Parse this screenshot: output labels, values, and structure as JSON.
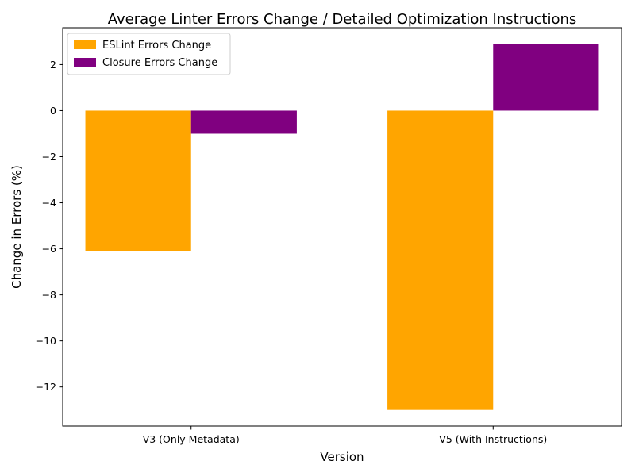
{
  "chart_data": {
    "type": "bar",
    "title": "Average Linter Errors Change / Detailed Optimization Instructions",
    "xlabel": "Version",
    "ylabel": "Change in Errors (%)",
    "categories": [
      "V3 (Only Metadata)",
      "V5 (With Instructions)"
    ],
    "series": [
      {
        "name": "ESLint Errors Change",
        "color": "#FFA500",
        "values": [
          -6.1,
          -13.0
        ]
      },
      {
        "name": "Closure Errors Change",
        "color": "#800080",
        "values": [
          -1.0,
          2.9
        ]
      }
    ],
    "ylim": [
      -13.7,
      3.6
    ],
    "yticks": [
      2,
      0,
      -2,
      -4,
      -6,
      -8,
      -10,
      -12
    ],
    "ytick_labels": [
      "2",
      "0",
      "−2",
      "−4",
      "−6",
      "−8",
      "−10",
      "−12"
    ],
    "legend_position": "top-left",
    "grid": false
  }
}
